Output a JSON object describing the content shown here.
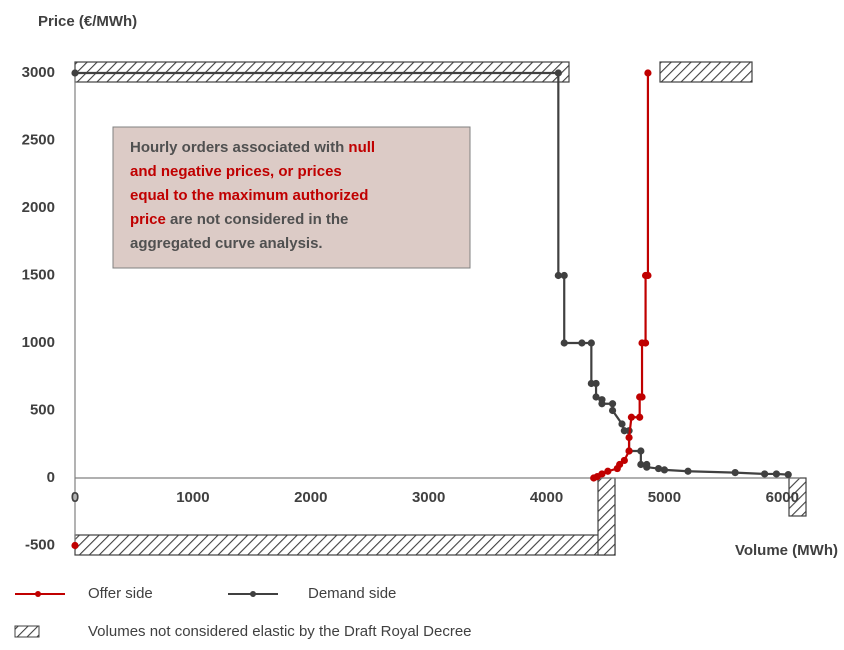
{
  "chart_data": {
    "type": "line",
    "y_axis_label": "Price (€/MWh)",
    "x_axis_label": "Volume (MWh)",
    "xlim": [
      0,
      6150
    ],
    "ylim": [
      -500,
      3000
    ],
    "xticks": [
      0,
      1000,
      2000,
      3000,
      4000,
      5000,
      6000
    ],
    "yticks": [
      -500,
      0,
      500,
      1000,
      1500,
      2000,
      2500,
      3000
    ],
    "series": [
      {
        "name": "Offer side",
        "color": "#c00000",
        "x": [
          0,
          null,
          4400,
          4430,
          4470,
          4520,
          4600,
          4620,
          4660,
          4700,
          4700,
          4720,
          4790,
          4790,
          4810,
          4810,
          4840,
          4840,
          4860,
          4860
        ],
        "values": [
          -500,
          null,
          0,
          10,
          30,
          50,
          70,
          100,
          130,
          200,
          300,
          450,
          450,
          600,
          600,
          1000,
          1000,
          1500,
          1500,
          3000
        ]
      },
      {
        "name": "Demand side",
        "color": "#404040",
        "x": [
          0,
          4100,
          4100,
          4150,
          4150,
          4300,
          4380,
          4380,
          4420,
          4420,
          4470,
          4470,
          4560,
          4560,
          4640,
          4660,
          4700,
          4700,
          4800,
          4800,
          4850,
          4850,
          4950,
          5000,
          5200,
          5600,
          5850,
          5950,
          6050
        ],
        "values": [
          3000,
          3000,
          1500,
          1500,
          1000,
          1000,
          1000,
          700,
          700,
          600,
          580,
          550,
          550,
          500,
          400,
          350,
          350,
          200,
          200,
          100,
          100,
          80,
          70,
          60,
          50,
          40,
          30,
          30,
          25
        ]
      }
    ],
    "annotation": [
      [
        {
          "text": "Hourly orders associated with ",
          "highlight": false
        },
        {
          "text": "null",
          "highlight": true
        }
      ],
      [
        {
          "text": "and negative prices, or prices",
          "highlight": true
        }
      ],
      [
        {
          "text": "equal to the maximum authorized",
          "highlight": true
        }
      ],
      [
        {
          "text": "price",
          "highlight": true
        },
        {
          "text": " are not considered in the",
          "highlight": false
        }
      ],
      [
        {
          "text": "aggregated curve analysis.",
          "highlight": false
        }
      ]
    ],
    "hatch_legend": "Volumes not considered elastic by the Draft Royal Decree"
  }
}
